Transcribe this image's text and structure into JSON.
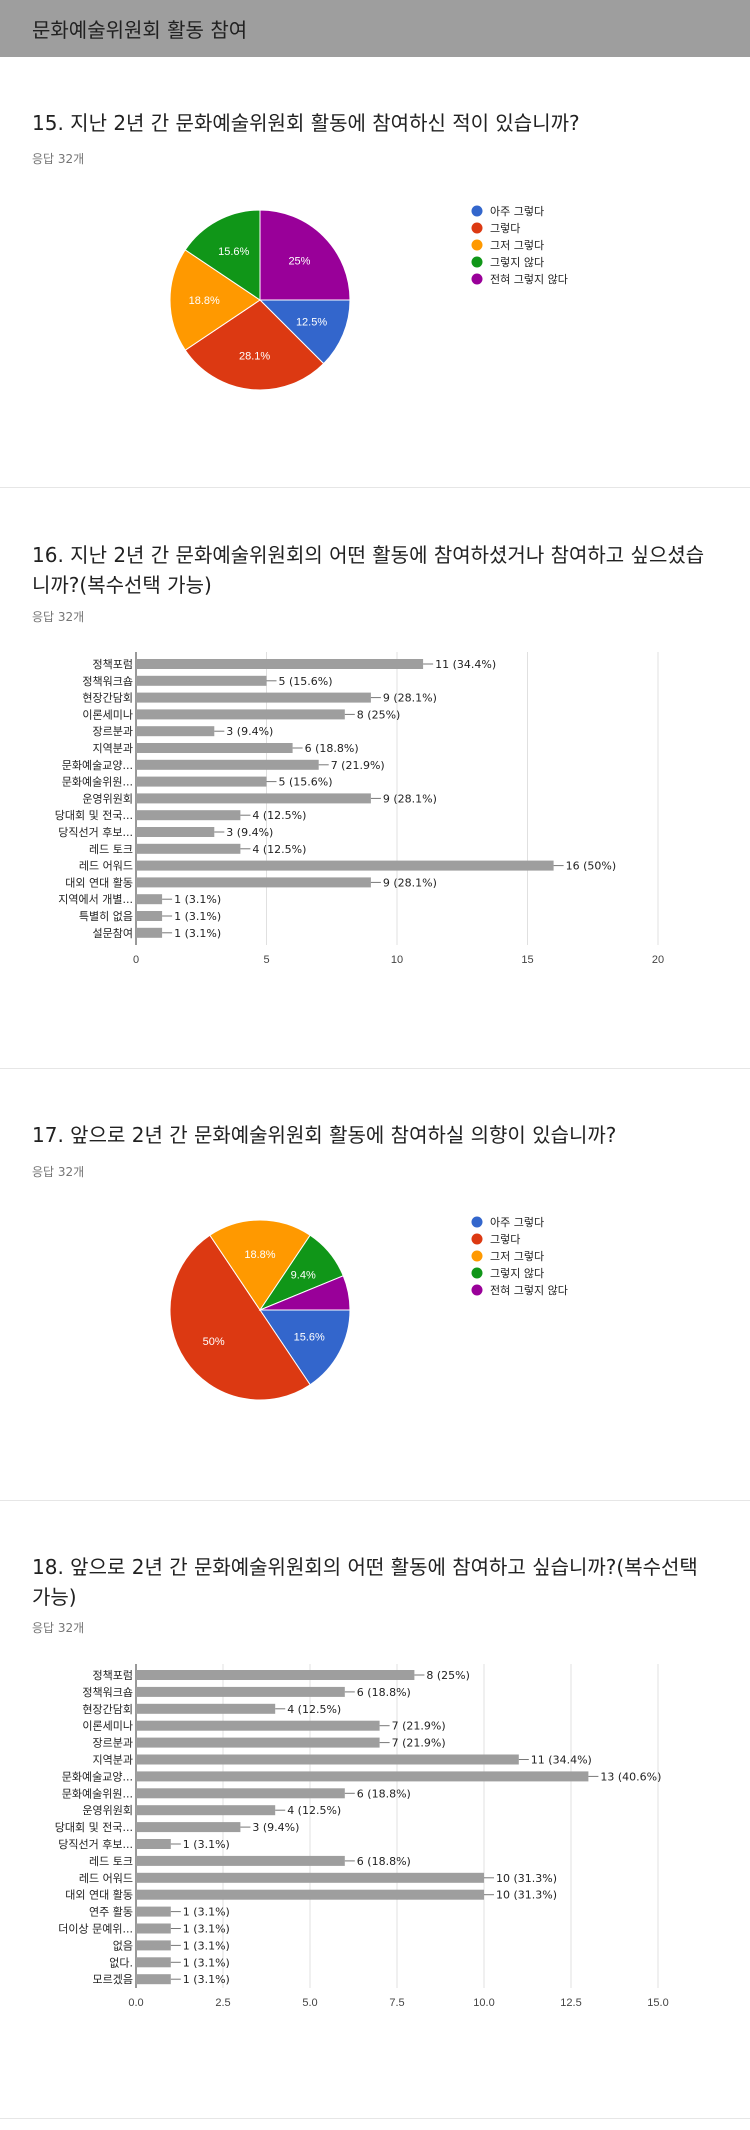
{
  "page_title": "문화예술위원회 활동 참여",
  "colors": {
    "blue": "#3366cc",
    "red": "#dc3912",
    "orange": "#ff9900",
    "green": "#109618",
    "purple": "#990099",
    "bar": "#9e9e9e"
  },
  "questions": [
    {
      "title": "15. 지난 2년 간 문화예술위원회 활동에 참여하신 적이 있습니까?",
      "responses": "응답 32개"
    },
    {
      "title": "16. 지난 2년 간 문화예술위원회의 어떤 활동에 참여하셨거나 참여하고 싶으셨습니까?(복수선택 가능)",
      "responses": "응답 32개"
    },
    {
      "title": "17. 앞으로 2년 간 문화예술위원회 활동에 참여하실 의향이 있습니까?",
      "responses": "응답 32개"
    },
    {
      "title": "18. 앞으로 2년 간 문화예술위원회의 어떤 활동에 참여하고 싶습니까?(복수선택 가능)",
      "responses": "응답 32개"
    }
  ],
  "chart_data": [
    {
      "type": "pie",
      "categories": [
        "아주 그렇다",
        "그렇다",
        "그저 그렇다",
        "그렇지 않다",
        "전혀 그렇지 않다"
      ],
      "values": [
        12.5,
        28.1,
        18.8,
        15.6,
        25
      ],
      "labels": [
        "12.5%",
        "28.1%",
        "18.8%",
        "15.6%",
        "25%"
      ],
      "legend_position": "right"
    },
    {
      "type": "bar",
      "orientation": "horizontal",
      "categories": [
        "정책포럼",
        "정책워크숍",
        "현장간담회",
        "이론세미나",
        "장르분과",
        "지역분과",
        "문화예술교양...",
        "문화예술위원...",
        "운영위원회",
        "당대회 및 전국...",
        "당직선거 후보...",
        "레드 토크",
        "레드 어워드",
        "대외 연대 활동",
        "지역에서 개별...",
        "특별히 없음",
        "설문참여"
      ],
      "values": [
        11,
        5,
        9,
        8,
        3,
        6,
        7,
        5,
        9,
        4,
        3,
        4,
        16,
        9,
        1,
        1,
        1
      ],
      "value_labels": [
        "11 (34.4%)",
        "5 (15.6%)",
        "9 (28.1%)",
        "8 (25%)",
        "3 (9.4%)",
        "6 (18.8%)",
        "7 (21.9%)",
        "5 (15.6%)",
        "9 (28.1%)",
        "4 (12.5%)",
        "3 (9.4%)",
        "4 (12.5%)",
        "16 (50%)",
        "9 (28.1%)",
        "1 (3.1%)",
        "1 (3.1%)",
        "1 (3.1%)"
      ],
      "xlim": [
        0,
        20
      ],
      "xticks": [
        "0",
        "5",
        "10",
        "15",
        "20"
      ]
    },
    {
      "type": "pie",
      "categories": [
        "아주 그렇다",
        "그렇다",
        "그저 그렇다",
        "그렇지 않다",
        "전혀 그렇지 않다"
      ],
      "values": [
        15.6,
        50,
        18.8,
        9.4,
        6.2
      ],
      "labels": [
        "15.6%",
        "50%",
        "18.8%",
        "9.4%",
        ""
      ],
      "legend_position": "right"
    },
    {
      "type": "bar",
      "orientation": "horizontal",
      "categories": [
        "정책포럼",
        "정책워크숍",
        "현장간담회",
        "이론세미나",
        "장르분과",
        "지역분과",
        "문화예술교양...",
        "문화예술위원...",
        "운영위원회",
        "당대회 및 전국...",
        "당직선거 후보...",
        "레드 토크",
        "레드 어워드",
        "대외 연대 활동",
        "연주 활동",
        "더이상 문예위...",
        "없음",
        "없다.",
        "모르겠음"
      ],
      "values": [
        8,
        6,
        4,
        7,
        7,
        11,
        13,
        6,
        4,
        3,
        1,
        6,
        10,
        10,
        1,
        1,
        1,
        1,
        1
      ],
      "value_labels": [
        "8 (25%)",
        "6 (18.8%)",
        "4 (12.5%)",
        "7 (21.9%)",
        "7 (21.9%)",
        "11 (34.4%)",
        "13 (40.6%)",
        "6 (18.8%)",
        "4 (12.5%)",
        "3 (9.4%)",
        "1 (3.1%)",
        "6 (18.8%)",
        "10 (31.3%)",
        "10 (31.3%)",
        "1 (3.1%)",
        "1 (3.1%)",
        "1 (3.1%)",
        "1 (3.1%)",
        "1 (3.1%)"
      ],
      "xlim": [
        0,
        15
      ],
      "xticks": [
        "0.0",
        "2.5",
        "5.0",
        "7.5",
        "10.0",
        "12.5",
        "15.0"
      ]
    }
  ]
}
